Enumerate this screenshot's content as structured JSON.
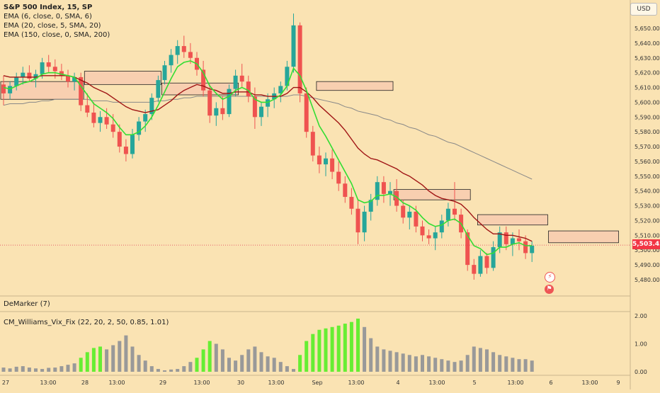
{
  "legend": {
    "title": "S&P 500 Index, 15, SP",
    "ema1": "EMA (6, close, 0, SMA, 6)",
    "ema2": "EMA (20, close, 5, SMA, 20)",
    "ema3": "EMA (150, close, 0, SMA, 200)"
  },
  "currency": "USD",
  "current_price": "5,503.42",
  "indicators": {
    "demarker": "DeMarker (7)",
    "vix_fix": "CM_Williams_Vix_Fix (22, 20, 2, 50, 0.85, 1.01)"
  },
  "colors": {
    "background": "#fae3b3",
    "up": "#26a69a",
    "down": "#ef5350",
    "ema6": "#33dd33",
    "ema20": "#a01515",
    "ema150": "#888888",
    "vix_high": "#66ee33",
    "vix_low": "#999999",
    "zone_fill": "#f8cfb0"
  },
  "events": [
    {
      "icon": "lightning-icon",
      "symbol": "⚡"
    },
    {
      "icon": "flag-icon",
      "symbol": "⚑"
    }
  ],
  "chart_data": [
    {
      "type": "candlestick",
      "title": "S&P 500 Index, 15, SP",
      "ylim": [
        5472,
        5660
      ],
      "y_ticks": [
        5480,
        5490,
        5500,
        5510,
        5520,
        5530,
        5540,
        5550,
        5560,
        5570,
        5580,
        5590,
        5600,
        5610,
        5620,
        5630,
        5640,
        5650
      ],
      "y_tick_labels": [
        "5,480.00",
        "5,490.00",
        "5,500.00",
        "5,510.00",
        "5,520.00",
        "5,530.00",
        "5,540.00",
        "5,550.00",
        "5,560.00",
        "5,570.00",
        "5,580.00",
        "5,590.00",
        "5,600.00",
        "5,610.00",
        "5,620.00",
        "5,630.00",
        "5,640.00",
        "5,650.00"
      ],
      "x_tick_labels": [
        "27",
        "13:00",
        "28",
        "13:00",
        "29",
        "13:00",
        "30",
        "13:00",
        "Sep",
        "13:00",
        "4",
        "13:00",
        "5",
        "13:00",
        "6",
        "13:00",
        "9"
      ],
      "grid": false,
      "legend_position": "top-left",
      "candles": [
        [
          5612,
          5618,
          5598,
          5606
        ],
        [
          5606,
          5614,
          5602,
          5611
        ],
        [
          5611,
          5620,
          5608,
          5617
        ],
        [
          5617,
          5624,
          5612,
          5620
        ],
        [
          5620,
          5625,
          5614,
          5616
        ],
        [
          5616,
          5622,
          5610,
          5619
        ],
        [
          5619,
          5630,
          5616,
          5627
        ],
        [
          5627,
          5632,
          5620,
          5624
        ],
        [
          5624,
          5629,
          5616,
          5621
        ],
        [
          5621,
          5626,
          5615,
          5618
        ],
        [
          5618,
          5622,
          5610,
          5614
        ],
        [
          5614,
          5620,
          5608,
          5617
        ],
        [
          5617,
          5620,
          5594,
          5598
        ],
        [
          5598,
          5606,
          5590,
          5593
        ],
        [
          5593,
          5600,
          5583,
          5586
        ],
        [
          5586,
          5594,
          5580,
          5590
        ],
        [
          5590,
          5596,
          5582,
          5585
        ],
        [
          5585,
          5592,
          5576,
          5580
        ],
        [
          5580,
          5585,
          5566,
          5570
        ],
        [
          5570,
          5575,
          5560,
          5565
        ],
        [
          5565,
          5582,
          5562,
          5578
        ],
        [
          5578,
          5590,
          5574,
          5587
        ],
        [
          5587,
          5595,
          5580,
          5592
        ],
        [
          5592,
          5606,
          5588,
          5603
        ],
        [
          5603,
          5618,
          5600,
          5615
        ],
        [
          5615,
          5628,
          5612,
          5625
        ],
        [
          5625,
          5636,
          5620,
          5632
        ],
        [
          5632,
          5642,
          5626,
          5638
        ],
        [
          5638,
          5645,
          5630,
          5634
        ],
        [
          5634,
          5640,
          5626,
          5630
        ],
        [
          5630,
          5634,
          5618,
          5622
        ],
        [
          5622,
          5628,
          5604,
          5608
        ],
        [
          5608,
          5612,
          5586,
          5591
        ],
        [
          5591,
          5600,
          5584,
          5596
        ],
        [
          5596,
          5604,
          5588,
          5592
        ],
        [
          5592,
          5612,
          5590,
          5609
        ],
        [
          5609,
          5622,
          5604,
          5618
        ],
        [
          5618,
          5626,
          5610,
          5614
        ],
        [
          5614,
          5618,
          5600,
          5604
        ],
        [
          5604,
          5610,
          5582,
          5590
        ],
        [
          5590,
          5600,
          5584,
          5597
        ],
        [
          5597,
          5606,
          5590,
          5602
        ],
        [
          5602,
          5610,
          5596,
          5606
        ],
        [
          5606,
          5614,
          5600,
          5611
        ],
        [
          5611,
          5628,
          5608,
          5624
        ],
        [
          5624,
          5660,
          5620,
          5652
        ],
        [
          5652,
          5654,
          5600,
          5606
        ],
        [
          5606,
          5610,
          5576,
          5580
        ],
        [
          5580,
          5584,
          5560,
          5564
        ],
        [
          5564,
          5570,
          5552,
          5558
        ],
        [
          5558,
          5566,
          5550,
          5562
        ],
        [
          5562,
          5568,
          5548,
          5553
        ],
        [
          5553,
          5560,
          5540,
          5545
        ],
        [
          5545,
          5550,
          5532,
          5536
        ],
        [
          5536,
          5542,
          5524,
          5528
        ],
        [
          5528,
          5534,
          5504,
          5512
        ],
        [
          5512,
          5530,
          5506,
          5526
        ],
        [
          5526,
          5538,
          5520,
          5534
        ],
        [
          5534,
          5550,
          5530,
          5546
        ],
        [
          5546,
          5550,
          5532,
          5538
        ],
        [
          5538,
          5546,
          5530,
          5540
        ],
        [
          5540,
          5548,
          5526,
          5530
        ],
        [
          5530,
          5534,
          5518,
          5522
        ],
        [
          5522,
          5530,
          5514,
          5526
        ],
        [
          5526,
          5530,
          5512,
          5516
        ],
        [
          5516,
          5520,
          5506,
          5510
        ],
        [
          5510,
          5514,
          5504,
          5508
        ],
        [
          5508,
          5516,
          5500,
          5512
        ],
        [
          5512,
          5524,
          5508,
          5520
        ],
        [
          5520,
          5532,
          5516,
          5528
        ],
        [
          5528,
          5546,
          5520,
          5524
        ],
        [
          5524,
          5528,
          5508,
          5512
        ],
        [
          5512,
          5514,
          5486,
          5490
        ],
        [
          5490,
          5494,
          5480,
          5484
        ],
        [
          5484,
          5500,
          5482,
          5496
        ],
        [
          5496,
          5498,
          5484,
          5488
        ],
        [
          5488,
          5506,
          5486,
          5502
        ],
        [
          5502,
          5516,
          5498,
          5512
        ],
        [
          5512,
          5516,
          5500,
          5504
        ],
        [
          5504,
          5512,
          5496,
          5508
        ],
        [
          5508,
          5514,
          5500,
          5506
        ],
        [
          5506,
          5510,
          5494,
          5498
        ],
        [
          5498,
          5506,
          5492,
          5503
        ]
      ],
      "ema6": [
        5610,
        5609,
        5611,
        5613,
        5614,
        5616,
        5619,
        5620,
        5620,
        5619,
        5618,
        5617,
        5611,
        5605,
        5599,
        5596,
        5593,
        5589,
        5583,
        5578,
        5578,
        5580,
        5584,
        5590,
        5598,
        5607,
        5616,
        5624,
        5627,
        5628,
        5626,
        5620,
        5611,
        5606,
        5602,
        5604,
        5608,
        5610,
        5608,
        5602,
        5600,
        5600,
        5602,
        5605,
        5611,
        5623,
        5618,
        5608,
        5596,
        5584,
        5577,
        5569,
        5561,
        5553,
        5545,
        5534,
        5532,
        5533,
        5537,
        5537,
        5538,
        5536,
        5532,
        5530,
        5527,
        5522,
        5518,
        5516,
        5517,
        5520,
        5521,
        5518,
        5510,
        5503,
        5501,
        5497,
        5498,
        5502,
        5502,
        5504,
        5505,
        5503,
        5503
      ],
      "ema20": [
        5618,
        5617,
        5617,
        5617,
        5617,
        5617,
        5618,
        5618,
        5618,
        5618,
        5618,
        5617,
        5615,
        5613,
        5610,
        5608,
        5606,
        5603,
        5600,
        5597,
        5595,
        5594,
        5593,
        5594,
        5595,
        5598,
        5601,
        5605,
        5608,
        5610,
        5612,
        5611,
        5609,
        5608,
        5606,
        5606,
        5607,
        5607,
        5607,
        5605,
        5605,
        5604,
        5604,
        5604,
        5606,
        5610,
        5610,
        5607,
        5603,
        5598,
        5594,
        5590,
        5586,
        5581,
        5575,
        5569,
        5565,
        5562,
        5561,
        5559,
        5557,
        5555,
        5552,
        5550,
        5547,
        5544,
        5540,
        5537,
        5535,
        5534,
        5533,
        5531,
        5527,
        5522,
        5518,
        5514,
        5511,
        5511,
        5510,
        5510,
        5509,
        5508,
        5506
      ],
      "ema150": [
        5598,
        5599,
        5599,
        5599,
        5600,
        5600,
        5601,
        5601,
        5602,
        5602,
        5602,
        5602,
        5602,
        5602,
        5601,
        5601,
        5601,
        5600,
        5600,
        5600,
        5600,
        5600,
        5600,
        5600,
        5601,
        5601,
        5602,
        5602,
        5603,
        5603,
        5604,
        5604,
        5604,
        5604,
        5604,
        5604,
        5604,
        5604,
        5604,
        5604,
        5604,
        5604,
        5604,
        5604,
        5604,
        5605,
        5605,
        5604,
        5603,
        5602,
        5601,
        5600,
        5599,
        5597,
        5596,
        5594,
        5593,
        5592,
        5591,
        5589,
        5588,
        5586,
        5585,
        5583,
        5582,
        5580,
        5578,
        5577,
        5575,
        5573,
        5572,
        5570,
        5568,
        5566,
        5564,
        5562,
        5560,
        5558,
        5556,
        5554,
        5552,
        5550,
        5548
      ]
    },
    {
      "type": "bar",
      "title": "CM_Williams_Vix_Fix (22, 20, 2, 50, 0.85, 1.01)",
      "ylim": [
        0,
        2.1
      ],
      "y_ticks": [
        0,
        1,
        2
      ],
      "y_tick_labels": [
        "0.00",
        "1.00",
        "2.00"
      ],
      "values": [
        0.15,
        0.12,
        0.18,
        0.2,
        0.15,
        0.12,
        0.1,
        0.14,
        0.15,
        0.2,
        0.25,
        0.3,
        0.5,
        0.7,
        0.85,
        0.9,
        0.8,
        0.95,
        1.1,
        1.3,
        0.9,
        0.6,
        0.4,
        0.2,
        0.1,
        0.05,
        0.08,
        0.1,
        0.2,
        0.35,
        0.5,
        0.8,
        1.1,
        1.0,
        0.8,
        0.5,
        0.4,
        0.6,
        0.8,
        0.9,
        0.7,
        0.55,
        0.5,
        0.35,
        0.2,
        0.1,
        0.6,
        1.1,
        1.35,
        1.5,
        1.55,
        1.6,
        1.65,
        1.72,
        1.78,
        1.9,
        1.6,
        1.2,
        0.9,
        0.8,
        0.75,
        0.7,
        0.65,
        0.6,
        0.55,
        0.6,
        0.55,
        0.5,
        0.45,
        0.4,
        0.35,
        0.4,
        0.6,
        0.9,
        0.85,
        0.8,
        0.7,
        0.6,
        0.55,
        0.5,
        0.45,
        0.45,
        0.4
      ],
      "highlight": [
        false,
        false,
        false,
        false,
        false,
        false,
        false,
        false,
        false,
        false,
        false,
        false,
        true,
        true,
        true,
        true,
        false,
        false,
        false,
        false,
        false,
        false,
        false,
        false,
        false,
        false,
        false,
        false,
        false,
        false,
        true,
        true,
        true,
        false,
        false,
        false,
        false,
        false,
        false,
        false,
        false,
        false,
        false,
        false,
        false,
        false,
        true,
        true,
        true,
        true,
        true,
        true,
        true,
        true,
        true,
        true,
        false,
        false,
        false,
        false,
        false,
        false,
        false,
        false,
        false,
        false,
        false,
        false,
        false,
        false,
        false,
        false,
        false,
        false,
        false,
        false,
        false,
        false,
        false,
        false,
        false,
        false,
        false
      ]
    }
  ]
}
